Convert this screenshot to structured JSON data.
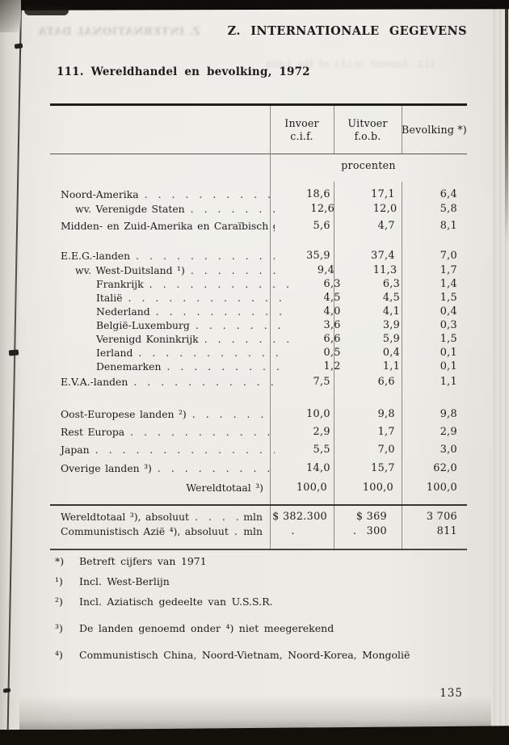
{
  "scan": {
    "header_right": "Z. INTERNATIONALE GEGEVENS",
    "title": "111. Wereldhandel en bevolking, 1972",
    "page_number": "135",
    "ghost_header_mirrored": "Z. INTERNATIONAL DATA",
    "ghost_line_mirrored": "112. Amount (c.i.f.) of the Latin",
    "paper_color": "#eceae4",
    "ink_color": "#1d1c19"
  },
  "table": {
    "col_headers": [
      {
        "line1": "Invoer",
        "line2": "c.i.f."
      },
      {
        "line1": "Uitvoer",
        "line2": "f.o.b."
      },
      {
        "line1": "Bevolking *)",
        "line2": ""
      }
    ],
    "unit_label": "procenten",
    "rows": [
      {
        "label": "Noord-Amerika",
        "indent": 0,
        "dots": true,
        "align": "left",
        "values": [
          "18,6",
          "17,1",
          "6,4"
        ]
      },
      {
        "label": "wv. Verenigde Staten",
        "indent": 1,
        "dots": true,
        "align": "left",
        "values": [
          "12,6",
          "12,0",
          "5,8"
        ]
      },
      {
        "label": "Midden- en Zuid-Amerika en Caraïbisch gebied",
        "indent": 0,
        "dots": false,
        "align": "left",
        "values": [
          "5,6",
          "4,7",
          "8,1"
        ]
      },
      {
        "label": "E.E.G.-landen",
        "indent": 0,
        "dots": true,
        "align": "left",
        "values": [
          "35,9",
          "37,4",
          "7,0"
        ]
      },
      {
        "label": "wv. West-Duitsland ¹)",
        "indent": 1,
        "dots": true,
        "align": "left",
        "values": [
          "9,4",
          "11,3",
          "1,7"
        ]
      },
      {
        "label": "Frankrijk",
        "indent": 2,
        "dots": true,
        "align": "left",
        "values": [
          "6,3",
          "6,3",
          "1,4"
        ]
      },
      {
        "label": "Italië",
        "indent": 2,
        "dots": true,
        "align": "left",
        "values": [
          "4,5",
          "4,5",
          "1,5"
        ]
      },
      {
        "label": "Nederland",
        "indent": 2,
        "dots": true,
        "align": "left",
        "values": [
          "4,0",
          "4,1",
          "0,4"
        ]
      },
      {
        "label": "België-Luxemburg",
        "indent": 2,
        "dots": true,
        "align": "left",
        "values": [
          "3,6",
          "3,9",
          "0,3"
        ]
      },
      {
        "label": "Verenigd Koninkrijk",
        "indent": 2,
        "dots": true,
        "align": "left",
        "values": [
          "6,6",
          "5,9",
          "1,5"
        ]
      },
      {
        "label": "Ierland",
        "indent": 2,
        "dots": true,
        "align": "left",
        "values": [
          "0,5",
          "0,4",
          "0,1"
        ]
      },
      {
        "label": "Denemarken",
        "indent": 2,
        "dots": true,
        "align": "left",
        "values": [
          "1,2",
          "1,1",
          "0,1"
        ]
      },
      {
        "label": "E.V.A.-landen",
        "indent": 0,
        "dots": true,
        "align": "left",
        "values": [
          "7,5",
          "6,6",
          "1,1"
        ]
      },
      {
        "label": "Oost-Europese landen ²)",
        "indent": 0,
        "dots": true,
        "align": "left",
        "values": [
          "10,0",
          "9,8",
          "9,8"
        ]
      },
      {
        "label": "Rest Europa",
        "indent": 0,
        "dots": true,
        "align": "left",
        "values": [
          "2,9",
          "1,7",
          "2,9"
        ]
      },
      {
        "label": "Japan",
        "indent": 0,
        "dots": true,
        "align": "left",
        "values": [
          "5,5",
          "7,0",
          "3,0"
        ]
      },
      {
        "label": "Overige landen ³)",
        "indent": 0,
        "dots": true,
        "align": "left",
        "values": [
          "14,0",
          "15,7",
          "62,0"
        ]
      },
      {
        "label": "Wereldtotaal ³)",
        "indent": 0,
        "dots": false,
        "align": "right",
        "values": [
          "100,0",
          "100,0",
          "100,0"
        ]
      }
    ],
    "absolute_rows": [
      {
        "label": "Wereldtotaal ³), absoluut",
        "unit": "mln",
        "values": [
          "$ 382.300",
          "$ 369 300",
          "3 706"
        ]
      },
      {
        "label": "Communistisch Azië ⁴), absoluut",
        "unit": "mln",
        "values": [
          ".",
          ".",
          "811"
        ]
      }
    ]
  },
  "footnotes": [
    {
      "marker": "*)",
      "text": "Betreft cijfers van 1971"
    },
    {
      "marker": "¹)",
      "text": "Incl. West-Berlijn"
    },
    {
      "marker": "²)",
      "text": "Incl. Aziatisch gedeelte van U.S.S.R."
    },
    {
      "marker": "³)",
      "text": "De landen genoemd onder ⁴) niet meegerekend"
    },
    {
      "marker": "⁴)",
      "text": "Communistisch China, Noord-Vietnam, Noord-Korea, Mongolië"
    }
  ]
}
